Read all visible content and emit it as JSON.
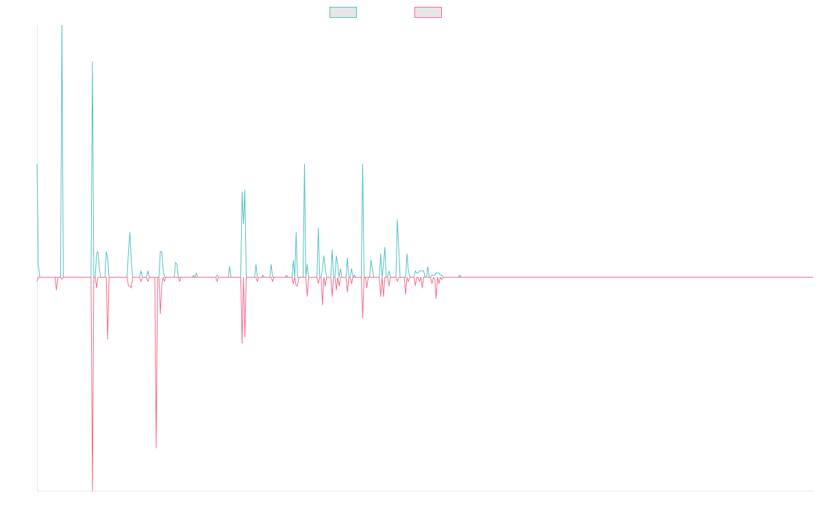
{
  "chart_data": {
    "type": "line",
    "title": "",
    "xlabel": "",
    "ylabel": "",
    "xlim": [
      0,
      560
    ],
    "ylim": [
      -100,
      118
    ],
    "grid": false,
    "legend": "top-center",
    "series": [
      {
        "color": "#4bc0c0",
        "baseline": 0,
        "peaks": [
          [
            0,
            53
          ],
          [
            1,
            6
          ],
          [
            18,
            118
          ],
          [
            40,
            101
          ],
          [
            43,
            11
          ],
          [
            44,
            12
          ],
          [
            45,
            4
          ],
          [
            50,
            12
          ],
          [
            51,
            9
          ],
          [
            66,
            12
          ],
          [
            67,
            21
          ],
          [
            68,
            8
          ],
          [
            75,
            3
          ],
          [
            80,
            3
          ],
          [
            89,
            12
          ],
          [
            90,
            12
          ],
          [
            91,
            4
          ],
          [
            100,
            7
          ],
          [
            101,
            6
          ],
          [
            113,
            1
          ],
          [
            115,
            2
          ],
          [
            130,
            1
          ],
          [
            139,
            5
          ],
          [
            148,
            40
          ],
          [
            149,
            25
          ],
          [
            150,
            41
          ],
          [
            158,
            6
          ],
          [
            163,
            1
          ],
          [
            169,
            6
          ],
          [
            180,
            1
          ],
          [
            185,
            8
          ],
          [
            187,
            21
          ],
          [
            193,
            53
          ],
          [
            195,
            6
          ],
          [
            203,
            23
          ],
          [
            206,
            4
          ],
          [
            207,
            10
          ],
          [
            208,
            4
          ],
          [
            213,
            13
          ],
          [
            216,
            10
          ],
          [
            217,
            6
          ],
          [
            219,
            4
          ],
          [
            224,
            9
          ],
          [
            227,
            4
          ],
          [
            229,
            1
          ],
          [
            235,
            53
          ],
          [
            241,
            8
          ],
          [
            242,
            4
          ],
          [
            248,
            11
          ],
          [
            250,
            6
          ],
          [
            251,
            14
          ],
          [
            254,
            3
          ],
          [
            260,
            27
          ],
          [
            261,
            14
          ],
          [
            267,
            11
          ],
          [
            268,
            3
          ],
          [
            273,
            3
          ],
          [
            274,
            2
          ],
          [
            275,
            2
          ],
          [
            276,
            3
          ],
          [
            277,
            3
          ],
          [
            278,
            3
          ],
          [
            279,
            3
          ],
          [
            282,
            5
          ],
          [
            285,
            1
          ],
          [
            286,
            1
          ],
          [
            287,
            1
          ],
          [
            288,
            2
          ],
          [
            289,
            2
          ],
          [
            290,
            2
          ],
          [
            291,
            1
          ],
          [
            292,
            1
          ],
          [
            305,
            1
          ]
        ]
      },
      {
        "color": "#ff6384",
        "baseline": 0,
        "peaks": [
          [
            0,
            -2
          ],
          [
            14,
            -6
          ],
          [
            18,
            -1
          ],
          [
            40,
            -100
          ],
          [
            43,
            -5
          ],
          [
            51,
            -29
          ],
          [
            66,
            -4
          ],
          [
            67,
            -4
          ],
          [
            68,
            -5
          ],
          [
            75,
            -2
          ],
          [
            80,
            -2
          ],
          [
            86,
            -80
          ],
          [
            89,
            -17
          ],
          [
            90,
            -4
          ],
          [
            92,
            -2
          ],
          [
            103,
            -2
          ],
          [
            130,
            -2
          ],
          [
            148,
            -31
          ],
          [
            150,
            -28
          ],
          [
            159,
            -2
          ],
          [
            170,
            -2
          ],
          [
            185,
            -3
          ],
          [
            187,
            -4
          ],
          [
            188,
            -4
          ],
          [
            195,
            -9
          ],
          [
            203,
            -3
          ],
          [
            206,
            -13
          ],
          [
            208,
            -4
          ],
          [
            213,
            -9
          ],
          [
            216,
            -6
          ],
          [
            218,
            -4
          ],
          [
            224,
            -7
          ],
          [
            227,
            -3
          ],
          [
            235,
            -19
          ],
          [
            238,
            -5
          ],
          [
            248,
            -9
          ],
          [
            250,
            -9
          ],
          [
            254,
            -4
          ],
          [
            260,
            -2
          ],
          [
            266,
            -8
          ],
          [
            268,
            -2
          ],
          [
            273,
            -4
          ],
          [
            276,
            -2
          ],
          [
            278,
            -5
          ],
          [
            285,
            -3
          ],
          [
            287,
            -1
          ],
          [
            288,
            -10
          ],
          [
            290,
            -3
          ],
          [
            292,
            -1
          ]
        ]
      }
    ]
  }
}
